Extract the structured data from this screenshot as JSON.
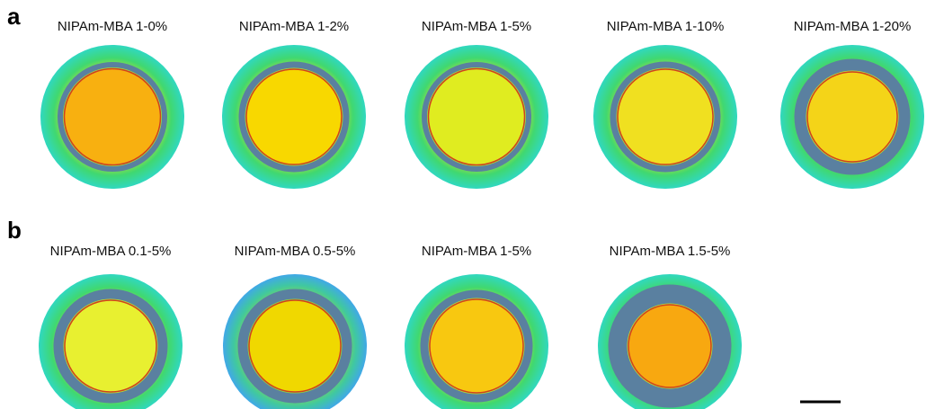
{
  "panels": [
    {
      "label": "a",
      "images": [
        {
          "caption": "NIPAm-MBA 1-0%"
        },
        {
          "caption": "NIPAm-MBA 1-2%"
        },
        {
          "caption": "NIPAm-MBA 1-5%"
        },
        {
          "caption": "NIPAm-MBA 1-10%"
        },
        {
          "caption": "NIPAm-MBA 1-20%"
        }
      ]
    },
    {
      "label": "b",
      "images": [
        {
          "caption": "NIPAm-MBA 0.1-5%"
        },
        {
          "caption": "NIPAm-MBA 0.5-5%"
        },
        {
          "caption": "NIPAm-MBA 1-5%"
        },
        {
          "caption": "NIPAm-MBA 1.5-5%"
        }
      ]
    }
  ]
}
